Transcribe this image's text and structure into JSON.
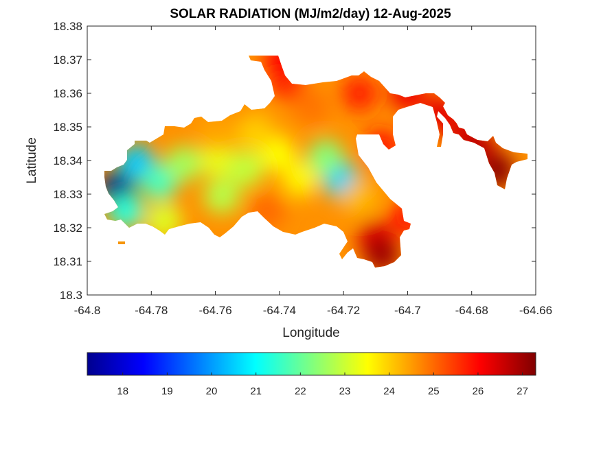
{
  "chart_data": {
    "type": "heatmap",
    "title": "SOLAR RADIATION (MJ/m2/day) 12-Aug-2025",
    "xlabel": "Longitude",
    "ylabel": "Latitude",
    "xlim": [
      -64.8,
      -64.66
    ],
    "ylim": [
      18.3,
      18.38
    ],
    "x_ticks": [
      -64.8,
      -64.78,
      -64.76,
      -64.74,
      -64.72,
      -64.7,
      -64.68,
      -64.66
    ],
    "x_tick_labels": [
      "-64.8",
      "-64.78",
      "-64.76",
      "-64.74",
      "-64.72",
      "-64.7",
      "-64.68",
      "-64.66"
    ],
    "y_ticks": [
      18.3,
      18.31,
      18.32,
      18.33,
      18.34,
      18.35,
      18.36,
      18.37,
      18.38
    ],
    "y_tick_labels": [
      "18.3",
      "18.31",
      "18.32",
      "18.33",
      "18.34",
      "18.35",
      "18.36",
      "18.37",
      "18.38"
    ],
    "grid": false,
    "colormap": "jet",
    "colorbar": {
      "placement": "bottom",
      "range": [
        17.2,
        27.3
      ],
      "ticks": [
        18,
        19,
        20,
        21,
        22,
        23,
        24,
        25,
        26,
        27
      ],
      "tick_labels": [
        "18",
        "19",
        "20",
        "21",
        "22",
        "23",
        "24",
        "25",
        "26",
        "27"
      ]
    },
    "hotspots": [
      {
        "lon": -64.7905,
        "lat": 18.3315,
        "value": 17.4
      },
      {
        "lon": -64.7845,
        "lat": 18.3395,
        "value": 20.6
      },
      {
        "lon": -64.7775,
        "lat": 18.3335,
        "value": 21.8
      },
      {
        "lon": -64.77,
        "lat": 18.339,
        "value": 22.6
      },
      {
        "lon": -64.7595,
        "lat": 18.3405,
        "value": 23.3
      },
      {
        "lon": -64.7505,
        "lat": 18.3375,
        "value": 22.9
      },
      {
        "lon": -64.758,
        "lat": 18.3295,
        "value": 22.8
      },
      {
        "lon": -64.7405,
        "lat": 18.342,
        "value": 23.5
      },
      {
        "lon": -64.7335,
        "lat": 18.3345,
        "value": 23.6
      },
      {
        "lon": -64.7205,
        "lat": 18.334,
        "value": 20.7
      },
      {
        "lon": -64.7255,
        "lat": 18.341,
        "value": 22.3
      },
      {
        "lon": -64.715,
        "lat": 18.329,
        "value": 24.2
      },
      {
        "lon": -64.745,
        "lat": 18.351,
        "value": 24.5
      },
      {
        "lon": -64.73,
        "lat": 18.356,
        "value": 24.9
      },
      {
        "lon": -64.76,
        "lat": 18.348,
        "value": 24.4
      },
      {
        "lon": -64.744,
        "lat": 18.325,
        "value": 25.0
      },
      {
        "lon": -64.738,
        "lat": 18.363,
        "value": 25.6
      },
      {
        "lon": -64.739,
        "lat": 18.37,
        "value": 26.0
      },
      {
        "lon": -64.715,
        "lat": 18.36,
        "value": 25.7
      },
      {
        "lon": -64.7,
        "lat": 18.36,
        "value": 26.2
      },
      {
        "lon": -64.708,
        "lat": 18.344,
        "value": 25.8
      },
      {
        "lon": -64.71,
        "lat": 18.317,
        "value": 26.4
      },
      {
        "lon": -64.708,
        "lat": 18.312,
        "value": 27.0
      },
      {
        "lon": -64.7,
        "lat": 18.323,
        "value": 25.8
      },
      {
        "lon": -64.69,
        "lat": 18.354,
        "value": 26.3
      },
      {
        "lon": -64.682,
        "lat": 18.348,
        "value": 26.4
      },
      {
        "lon": -64.672,
        "lat": 18.337,
        "value": 27.2
      },
      {
        "lon": -64.678,
        "lat": 18.344,
        "value": 26.7
      },
      {
        "lon": -64.776,
        "lat": 18.322,
        "value": 23.2
      },
      {
        "lon": -64.788,
        "lat": 18.325,
        "value": 21.5
      },
      {
        "lon": -64.748,
        "lat": 18.348,
        "value": 24.0
      }
    ]
  }
}
